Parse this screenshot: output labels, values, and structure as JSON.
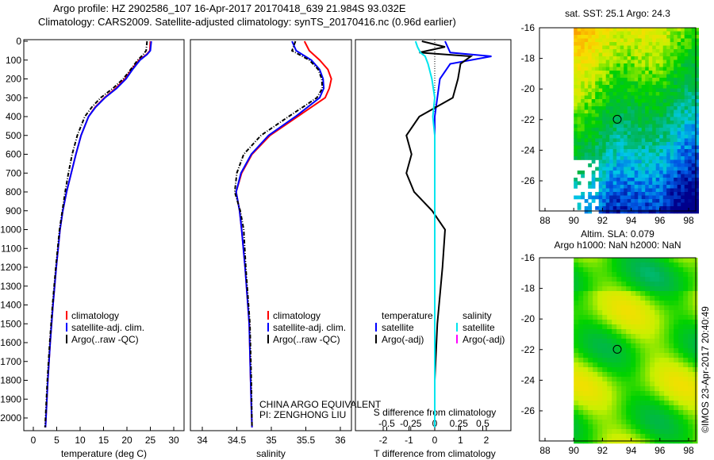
{
  "title_line1": "Argo profile: HZ 2902586_107 16-Apr-2017 20170418_639 21.984S 93.032E",
  "title_line2": "Climatology: CARS2009. Satellite-adjusted climatology: synTS_20170416.nc (0.96d earlier)",
  "side_label": "©IMOS 23-Apr-2017 20:40:49",
  "colors": {
    "climatology": "#ff0000",
    "satellite": "#0000ff",
    "argo": "#000000",
    "sat_salinity": "#00e5ee",
    "argo_adj_salinity": "#ff00ff"
  },
  "chart_data": [
    {
      "type": "line",
      "name": "temperature",
      "xlabel": "temperature (deg C)",
      "xlim": [
        -2,
        32
      ],
      "ylim": [
        2050,
        0
      ],
      "xticks": [
        "0",
        "5",
        "10",
        "15",
        "20",
        "25",
        "30"
      ],
      "xtick_values": [
        0,
        5,
        10,
        15,
        20,
        25,
        30
      ],
      "yticks": [
        "0",
        "100",
        "200",
        "300",
        "400",
        "500",
        "600",
        "700",
        "800",
        "900",
        "1000",
        "1100",
        "1200",
        "1300",
        "1400",
        "1500",
        "1600",
        "1700",
        "1800",
        "1900",
        "2000"
      ],
      "depth": [
        0,
        50,
        70,
        100,
        150,
        200,
        250,
        300,
        350,
        400,
        500,
        600,
        700,
        800,
        900,
        1000,
        1200,
        1400,
        1600,
        1800,
        2050
      ],
      "series": [
        {
          "name": "climatology",
          "values": [
            25,
            24.9,
            24.2,
            22.6,
            21,
            19.6,
            17.6,
            15.2,
            13.2,
            11.8,
            10.2,
            9.1,
            8.1,
            7.1,
            6.3,
            5.7,
            4.9,
            4.2,
            3.6,
            3.1,
            2.6
          ]
        },
        {
          "name": "satellite-adj. clim.",
          "values": [
            25.2,
            25,
            24.3,
            22.8,
            21.2,
            19.8,
            17.8,
            15.3,
            13.3,
            11.8,
            10.2,
            9.1,
            8.1,
            7.1,
            6.3,
            5.7,
            4.9,
            4.2,
            3.6,
            3.1,
            2.6
          ]
        },
        {
          "name": "Argo(..raw -QC)",
          "values": [
            24.3,
            24.1,
            23.5,
            22.3,
            20.8,
            19.2,
            17,
            14.4,
            12.5,
            11,
            9.4,
            8.3,
            7.5,
            6.8,
            6.2,
            5.6,
            4.8,
            4.1,
            3.5,
            3,
            2.5
          ]
        }
      ],
      "legend": [
        "climatology",
        "satellite-adj. clim.",
        "Argo(..raw -QC)"
      ]
    },
    {
      "type": "line",
      "name": "salinity",
      "xlabel": "salinity",
      "xlim": [
        33.83,
        36.15
      ],
      "ylim": [
        2050,
        0
      ],
      "xticks": [
        "34",
        "34.5",
        "35",
        "35.5",
        "36"
      ],
      "xtick_values": [
        34,
        34.5,
        35,
        35.5,
        36
      ],
      "depth": [
        0,
        50,
        100,
        150,
        200,
        250,
        300,
        400,
        500,
        600,
        700,
        800,
        900,
        1000,
        1200,
        1500,
        1800,
        2050
      ],
      "series": [
        {
          "name": "climatology",
          "values": [
            35.48,
            35.55,
            35.7,
            35.82,
            35.87,
            35.84,
            35.78,
            35.38,
            34.98,
            34.72,
            34.57,
            34.49,
            34.54,
            34.57,
            34.62,
            34.68,
            34.7,
            34.72
          ]
        },
        {
          "name": "satellite-adj. clim.",
          "values": [
            35.3,
            35.36,
            35.58,
            35.7,
            35.75,
            35.76,
            35.7,
            35.35,
            34.96,
            34.71,
            34.56,
            34.49,
            34.54,
            34.57,
            34.62,
            34.68,
            34.7,
            34.72
          ]
        },
        {
          "name": "Argo(..raw -QC)",
          "values": [
            35.35,
            35.3,
            35.55,
            35.68,
            35.73,
            35.74,
            35.66,
            35.25,
            34.85,
            34.6,
            34.5,
            34.47,
            34.55,
            34.6,
            34.63,
            34.69,
            34.71,
            34.72
          ]
        }
      ],
      "legend": [
        "climatology",
        "satellite-adj. clim.",
        "Argo(..raw -QC)"
      ],
      "annotations": [
        "CHINA ARGO EQUIVALENT",
        "PI: ZENGHONG LIU"
      ]
    },
    {
      "type": "line",
      "name": "differences",
      "xlabel": "T difference from climatology",
      "x2label": "S difference from climatology",
      "xlim": [
        -3,
        3
      ],
      "ylim": [
        2050,
        0
      ],
      "xticks": [
        "-2",
        "-1",
        "0",
        "1",
        "2"
      ],
      "xtick_values": [
        -2,
        -1,
        0,
        1,
        2
      ],
      "x2ticks": [
        "-0.5",
        "-0.25",
        "0",
        "0.25",
        "0.5"
      ],
      "x2tick_values": [
        -0.5,
        -0.25,
        0,
        0.25,
        0.5
      ],
      "depth": [
        0,
        30,
        60,
        80,
        120,
        200,
        300,
        400,
        500,
        600,
        700,
        800,
        900,
        1000,
        1200,
        1500,
        1800,
        2050
      ],
      "series": [
        {
          "name": "T satellite",
          "values": [
            0.4,
            0.5,
            0.6,
            2.2,
            0.6,
            0.2,
            0.1,
            0,
            0,
            0,
            0,
            0,
            0,
            0,
            0,
            0,
            0,
            0
          ]
        },
        {
          "name": "T Argo(-adj)",
          "values": [
            -0.5,
            0.4,
            -0.6,
            1.4,
            1,
            0.9,
            0.7,
            -0.6,
            -1.1,
            -0.9,
            -1.1,
            -0.8,
            -0.1,
            0.4,
            0.3,
            0.1,
            0,
            0
          ]
        },
        {
          "name": "S satellite",
          "values": [
            -0.2,
            -0.18,
            -0.15,
            -0.1,
            -0.07,
            -0.03,
            0,
            -0.02,
            0,
            0,
            0,
            0,
            0,
            0,
            0,
            0,
            0,
            0
          ]
        }
      ],
      "legend_headers": [
        "temperature",
        "salinity"
      ],
      "legend": [
        "satellite",
        "Argo(-adj)",
        "satellite",
        "Argo(-adj)"
      ]
    },
    {
      "type": "heatmap",
      "name": "sst_map",
      "title": "sat. SST: 25.1 Argo: 24.3",
      "xticks": [
        "88",
        "90",
        "92",
        "94",
        "96",
        "98"
      ],
      "yticks": [
        "-16",
        "-18",
        "-20",
        "-22",
        "-24",
        "-26"
      ],
      "marker": {
        "lon": 93.03,
        "lat": -21.98
      }
    },
    {
      "type": "heatmap",
      "name": "sla_map",
      "title": "Altim. SLA: 0.079",
      "subtitle": "Argo h1000: NaN h2000: NaN",
      "xticks": [
        "88",
        "90",
        "92",
        "94",
        "96",
        "98"
      ],
      "yticks": [
        "-16",
        "-18",
        "-20",
        "-22",
        "-24",
        "-26"
      ],
      "marker": {
        "lon": 93.03,
        "lat": -21.98
      }
    }
  ]
}
